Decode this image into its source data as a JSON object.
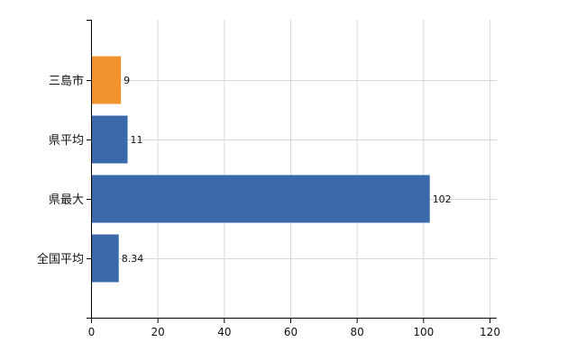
{
  "chart_data": {
    "type": "bar",
    "orientation": "horizontal",
    "categories": [
      "三島市",
      "県平均",
      "県最大",
      "全国平均"
    ],
    "values": [
      9,
      11,
      102,
      8.34
    ],
    "value_labels": [
      "9",
      "11",
      "102",
      "8.34"
    ],
    "colors": [
      "#f0922e",
      "#3a6aaa",
      "#3a6aaa",
      "#3a6aaa"
    ],
    "xlim": [
      0,
      120
    ],
    "xticks": [
      0,
      20,
      40,
      60,
      80,
      100,
      120
    ],
    "xtick_labels": [
      "0",
      "20",
      "40",
      "60",
      "80",
      "100",
      "120"
    ],
    "grid": true,
    "legend": "none"
  }
}
